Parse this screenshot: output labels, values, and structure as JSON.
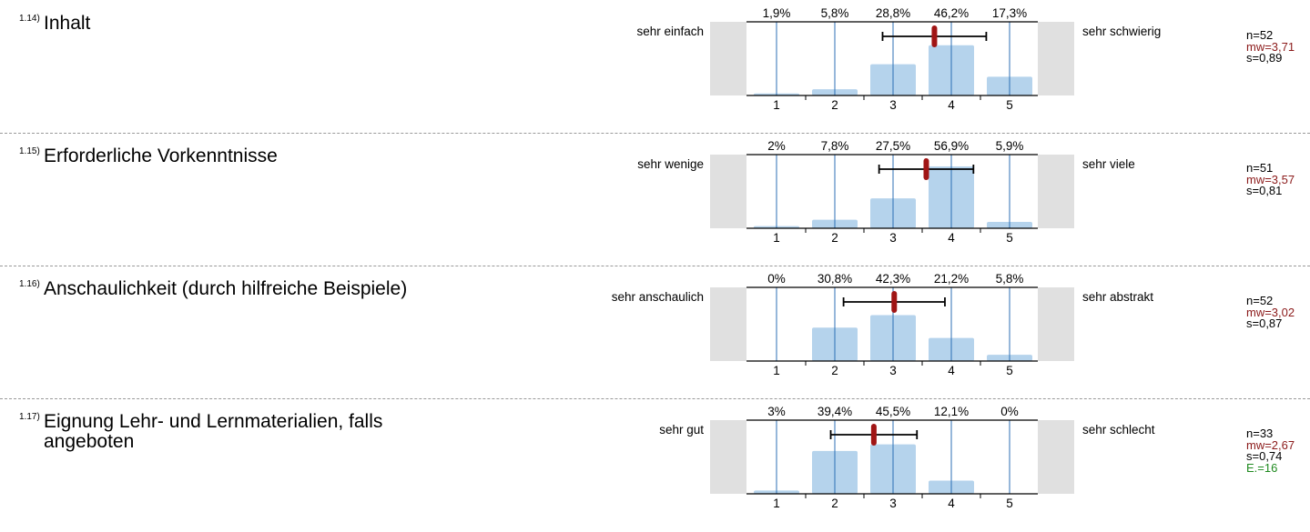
{
  "colors": {
    "bar": "#b5d3ec",
    "gridline": "#2c6fb5",
    "mean": "#a01515",
    "side": "#e0e0e0",
    "mw_text": "#8b1a1a",
    "ex_text": "#1f8a1f"
  },
  "chart_data": [
    {
      "type": "bar",
      "number": "1.14)",
      "title": "Inhalt",
      "left_label": "sehr einfach",
      "right_label": "sehr schwierig",
      "categories": [
        "1",
        "2",
        "3",
        "4",
        "5"
      ],
      "percent_labels": [
        "1,9%",
        "5,8%",
        "28,8%",
        "46,2%",
        "17,3%"
      ],
      "values": [
        1.9,
        5.8,
        28.8,
        46.2,
        17.3
      ],
      "mean": 3.71,
      "sd": 0.89,
      "stats": {
        "n": "n=52",
        "mw": "mw=3,71",
        "s": "s=0,89"
      }
    },
    {
      "type": "bar",
      "number": "1.15)",
      "title": "Erforderliche Vorkenntnisse",
      "left_label": "sehr wenige",
      "right_label": "sehr viele",
      "categories": [
        "1",
        "2",
        "3",
        "4",
        "5"
      ],
      "percent_labels": [
        "2%",
        "7,8%",
        "27,5%",
        "56,9%",
        "5,9%"
      ],
      "values": [
        2,
        7.8,
        27.5,
        56.9,
        5.9
      ],
      "mean": 3.57,
      "sd": 0.81,
      "stats": {
        "n": "n=51",
        "mw": "mw=3,57",
        "s": "s=0,81"
      }
    },
    {
      "type": "bar",
      "number": "1.16)",
      "title": "Anschaulichkeit (durch hilfreiche Beispiele)",
      "left_label": "sehr anschaulich",
      "right_label": "sehr abstrakt",
      "categories": [
        "1",
        "2",
        "3",
        "4",
        "5"
      ],
      "percent_labels": [
        "0%",
        "30,8%",
        "42,3%",
        "21,2%",
        "5,8%"
      ],
      "values": [
        0,
        30.8,
        42.3,
        21.2,
        5.8
      ],
      "mean": 3.02,
      "sd": 0.87,
      "stats": {
        "n": "n=52",
        "mw": "mw=3,02",
        "s": "s=0,87"
      }
    },
    {
      "type": "bar",
      "number": "1.17)",
      "title": "Eignung Lehr- und Lernmaterialien, falls angeboten",
      "left_label": "sehr gut",
      "right_label": "sehr schlecht",
      "categories": [
        "1",
        "2",
        "3",
        "4",
        "5"
      ],
      "percent_labels": [
        "3%",
        "39,4%",
        "45,5%",
        "12,1%",
        "0%"
      ],
      "values": [
        3,
        39.4,
        45.5,
        12.1,
        0
      ],
      "mean": 2.67,
      "sd": 0.74,
      "stats": {
        "n": "n=33",
        "mw": "mw=2,67",
        "s": "s=0,74",
        "e": "E.=16"
      }
    }
  ]
}
